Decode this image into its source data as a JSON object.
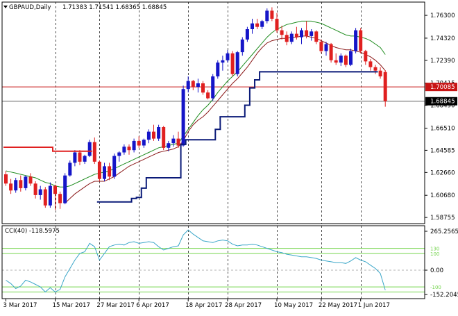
{
  "header": {
    "symbol": "GBPAUD,Daily",
    "ohlc": "1.71383 1.71541 1.68365 1.68845"
  },
  "colors": {
    "bull": "#1515c8",
    "bear": "#e02020",
    "ma_fast": "#1e8c1e",
    "ma_slow": "#8b1a1a",
    "stop_up": "#0a1a78",
    "stop_down": "#e02020",
    "cci": "#3aa6c8",
    "cci_levels": "#74d44e",
    "hline_red": "#c81414",
    "hline_gray": "#606060",
    "grid": "#000000"
  },
  "chart_data": [
    {
      "type": "candlestick",
      "title": "GBPAUD,Daily",
      "ylim": [
        1.5822,
        1.7745
      ],
      "yticks": [
        "1.76300",
        "1.74320",
        "1.72390",
        "1.70415",
        "1.68490",
        "1.66510",
        "1.64585",
        "1.62660",
        "1.60680",
        "1.58755"
      ],
      "ytick_values": [
        1.763,
        1.7432,
        1.7239,
        1.70415,
        1.6849,
        1.6651,
        1.64585,
        1.6266,
        1.6068,
        1.58755
      ],
      "xticks": [
        "3 Mar 2017",
        "15 Mar 2017",
        "27 Mar 2017",
        "6 Apr 2017",
        "18 Apr 2017",
        "28 Apr 2017",
        "10 May 2017",
        "22 May 2017",
        "1 Jun 2017"
      ],
      "xtick_index": [
        0,
        10,
        19,
        27,
        37,
        45,
        55,
        64,
        72
      ],
      "grid_index": [
        10,
        19,
        27,
        37,
        45,
        55,
        64,
        72
      ],
      "candles": [
        [
          1.625,
          1.628,
          1.615,
          1.617
        ],
        [
          1.617,
          1.621,
          1.608,
          1.611
        ],
        [
          1.611,
          1.622,
          1.609,
          1.62
        ],
        [
          1.62,
          1.624,
          1.61,
          1.613
        ],
        [
          1.613,
          1.624,
          1.611,
          1.623
        ],
        [
          1.623,
          1.626,
          1.615,
          1.617
        ],
        [
          1.617,
          1.619,
          1.604,
          1.607
        ],
        [
          1.607,
          1.615,
          1.603,
          1.612
        ],
        [
          1.612,
          1.614,
          1.596,
          1.598
        ],
        [
          1.598,
          1.618,
          1.596,
          1.615
        ],
        [
          1.615,
          1.616,
          1.594,
          1.608
        ],
        [
          1.608,
          1.61,
          1.595,
          1.6
        ],
        [
          1.6,
          1.626,
          1.599,
          1.624
        ],
        [
          1.624,
          1.637,
          1.623,
          1.635
        ],
        [
          1.635,
          1.646,
          1.632,
          1.644
        ],
        [
          1.644,
          1.646,
          1.633,
          1.636
        ],
        [
          1.636,
          1.642,
          1.634,
          1.641
        ],
        [
          1.641,
          1.655,
          1.64,
          1.653
        ],
        [
          1.653,
          1.657,
          1.634,
          1.636
        ],
        [
          1.636,
          1.637,
          1.619,
          1.621
        ],
        [
          1.621,
          1.635,
          1.619,
          1.632
        ],
        [
          1.632,
          1.635,
          1.62,
          1.623
        ],
        [
          1.623,
          1.643,
          1.621,
          1.641
        ],
        [
          1.641,
          1.645,
          1.636,
          1.644
        ],
        [
          1.644,
          1.651,
          1.642,
          1.649
        ],
        [
          1.649,
          1.651,
          1.642,
          1.646
        ],
        [
          1.646,
          1.656,
          1.644,
          1.654
        ],
        [
          1.654,
          1.658,
          1.648,
          1.65
        ],
        [
          1.65,
          1.656,
          1.648,
          1.655
        ],
        [
          1.655,
          1.664,
          1.652,
          1.662
        ],
        [
          1.662,
          1.668,
          1.654,
          1.656
        ],
        [
          1.656,
          1.668,
          1.654,
          1.666
        ],
        [
          1.666,
          1.667,
          1.646,
          1.648
        ],
        [
          1.648,
          1.654,
          1.645,
          1.652
        ],
        [
          1.652,
          1.659,
          1.649,
          1.656
        ],
        [
          1.656,
          1.662,
          1.648,
          1.65
        ],
        [
          1.65,
          1.702,
          1.649,
          1.699
        ],
        [
          1.699,
          1.71,
          1.696,
          1.706
        ],
        [
          1.706,
          1.707,
          1.698,
          1.701
        ],
        [
          1.701,
          1.708,
          1.696,
          1.704
        ],
        [
          1.704,
          1.706,
          1.694,
          1.696
        ],
        [
          1.696,
          1.698,
          1.69,
          1.691
        ],
        [
          1.691,
          1.712,
          1.689,
          1.71
        ],
        [
          1.71,
          1.724,
          1.708,
          1.722
        ],
        [
          1.722,
          1.728,
          1.715,
          1.724
        ],
        [
          1.724,
          1.733,
          1.722,
          1.73
        ],
        [
          1.73,
          1.732,
          1.71,
          1.712
        ],
        [
          1.712,
          1.732,
          1.71,
          1.731
        ],
        [
          1.731,
          1.744,
          1.728,
          1.742
        ],
        [
          1.742,
          1.753,
          1.74,
          1.751
        ],
        [
          1.751,
          1.76,
          1.747,
          1.756
        ],
        [
          1.756,
          1.76,
          1.751,
          1.753
        ],
        [
          1.753,
          1.759,
          1.751,
          1.758
        ],
        [
          1.758,
          1.769,
          1.756,
          1.767
        ],
        [
          1.767,
          1.77,
          1.758,
          1.76
        ],
        [
          1.76,
          1.765,
          1.748,
          1.75
        ],
        [
          1.75,
          1.754,
          1.742,
          1.746
        ],
        [
          1.746,
          1.749,
          1.737,
          1.74
        ],
        [
          1.74,
          1.749,
          1.738,
          1.747
        ],
        [
          1.747,
          1.753,
          1.742,
          1.744
        ],
        [
          1.744,
          1.752,
          1.738,
          1.75
        ],
        [
          1.75,
          1.758,
          1.743,
          1.745
        ],
        [
          1.745,
          1.751,
          1.741,
          1.749
        ],
        [
          1.749,
          1.75,
          1.738,
          1.74
        ],
        [
          1.74,
          1.742,
          1.73,
          1.732
        ],
        [
          1.732,
          1.74,
          1.728,
          1.738
        ],
        [
          1.738,
          1.739,
          1.722,
          1.724
        ],
        [
          1.724,
          1.73,
          1.72,
          1.722
        ],
        [
          1.722,
          1.73,
          1.719,
          1.728
        ],
        [
          1.728,
          1.729,
          1.718,
          1.72
        ],
        [
          1.72,
          1.734,
          1.719,
          1.732
        ],
        [
          1.732,
          1.752,
          1.73,
          1.75
        ],
        [
          1.75,
          1.752,
          1.73,
          1.732
        ],
        [
          1.732,
          1.733,
          1.72,
          1.723
        ],
        [
          1.723,
          1.725,
          1.715,
          1.718
        ],
        [
          1.718,
          1.72,
          1.712,
          1.715
        ],
        [
          1.715,
          1.718,
          1.708,
          1.71
        ],
        [
          1.7138,
          1.7154,
          1.6837,
          1.6885
        ]
      ],
      "ma_fast": [
        1.628,
        1.627,
        1.626,
        1.625,
        1.624,
        1.623,
        1.622,
        1.62,
        1.618,
        1.617,
        1.615,
        1.614,
        1.614,
        1.615,
        1.617,
        1.619,
        1.621,
        1.623,
        1.625,
        1.626,
        1.627,
        1.628,
        1.63,
        1.632,
        1.634,
        1.636,
        1.638,
        1.64,
        1.642,
        1.644,
        1.646,
        1.648,
        1.649,
        1.65,
        1.651,
        1.652,
        1.658,
        1.664,
        1.67,
        1.676,
        1.681,
        1.685,
        1.69,
        1.696,
        1.701,
        1.706,
        1.71,
        1.714,
        1.719,
        1.724,
        1.729,
        1.734,
        1.739,
        1.744,
        1.748,
        1.751,
        1.753,
        1.755,
        1.756,
        1.757,
        1.758,
        1.758,
        1.758,
        1.757,
        1.756,
        1.754,
        1.752,
        1.75,
        1.748,
        1.746,
        1.745,
        1.745,
        1.744,
        1.743,
        1.741,
        1.738,
        1.735,
        1.729
      ],
      "ma_slow": [
        null,
        null,
        null,
        null,
        null,
        null,
        null,
        null,
        null,
        null,
        null,
        null,
        1.6,
        1.604,
        1.608,
        1.611,
        1.614,
        1.617,
        1.619,
        1.619,
        1.619,
        1.621,
        1.623,
        1.626,
        1.629,
        1.632,
        1.634,
        1.636,
        1.638,
        1.64,
        1.642,
        1.644,
        1.645,
        1.646,
        1.647,
        1.649,
        1.654,
        1.662,
        1.668,
        1.672,
        1.675,
        1.679,
        1.684,
        1.689,
        1.694,
        1.699,
        1.704,
        1.708,
        1.713,
        1.718,
        1.724,
        1.73,
        1.735,
        1.739,
        1.741,
        1.742,
        1.743,
        1.743,
        1.744,
        1.744,
        1.745,
        1.745,
        1.744,
        1.743,
        1.741,
        1.739,
        1.737,
        1.735,
        1.734,
        1.733,
        1.733,
        1.732,
        1.731,
        1.729,
        1.727,
        1.724,
        1.72,
        1.715
      ],
      "stop_down": [
        1.6485,
        1.6485,
        1.6485,
        1.6485,
        1.6485,
        1.6485,
        1.6485,
        1.6485,
        1.6485,
        1.6485,
        1.645,
        1.645,
        1.645,
        1.645,
        1.645,
        1.645,
        1.645,
        1.645
      ],
      "stop_up_start": 19,
      "stop_up": [
        1.601,
        1.601,
        1.601,
        1.601,
        1.601,
        1.601,
        1.601,
        1.604,
        1.605,
        1.613,
        1.622,
        1.622,
        1.622,
        1.622,
        1.622,
        1.622,
        1.622,
        1.651,
        1.655,
        1.655,
        1.655,
        1.655,
        1.655,
        1.655,
        1.664,
        1.675,
        1.675,
        1.675,
        1.675,
        1.675,
        1.685,
        1.7,
        1.707,
        1.714,
        1.714,
        1.714,
        1.714,
        1.714,
        1.714,
        1.714,
        1.714,
        1.714,
        1.714,
        1.714,
        1.714,
        1.714,
        1.714,
        1.714,
        1.714,
        1.714,
        1.714,
        1.714,
        1.714,
        1.714,
        1.714,
        1.714,
        1.714
      ],
      "hlines": [
        {
          "value": 1.70085,
          "label": "1.70085"
        },
        {
          "value": 1.68845,
          "label": "1.68845"
        }
      ]
    },
    {
      "type": "line",
      "title": "CCI(40) -118.5975",
      "ylim": [
        -170,
        265.2565
      ],
      "yticks": [
        "265.2565",
        "130",
        "100",
        "0.00",
        "-100",
        "-152.2045"
      ],
      "ytick_values": [
        265.2565,
        130,
        100,
        0,
        -100,
        -152.2045
      ],
      "levels": [
        130,
        100,
        -100,
        -130
      ],
      "values": [
        -60,
        -80,
        -110,
        -95,
        -60,
        -70,
        -85,
        -100,
        -130,
        -105,
        -130,
        -115,
        -40,
        10,
        60,
        100,
        110,
        160,
        140,
        60,
        100,
        140,
        150,
        155,
        150,
        165,
        170,
        160,
        165,
        170,
        165,
        140,
        120,
        130,
        140,
        145,
        210,
        240,
        215,
        195,
        175,
        170,
        165,
        175,
        180,
        175,
        155,
        145,
        150,
        150,
        155,
        150,
        140,
        130,
        120,
        110,
        105,
        95,
        90,
        85,
        80,
        80,
        75,
        70,
        60,
        55,
        50,
        45,
        45,
        40,
        55,
        75,
        60,
        50,
        30,
        10,
        -20,
        -118.5975
      ]
    }
  ]
}
